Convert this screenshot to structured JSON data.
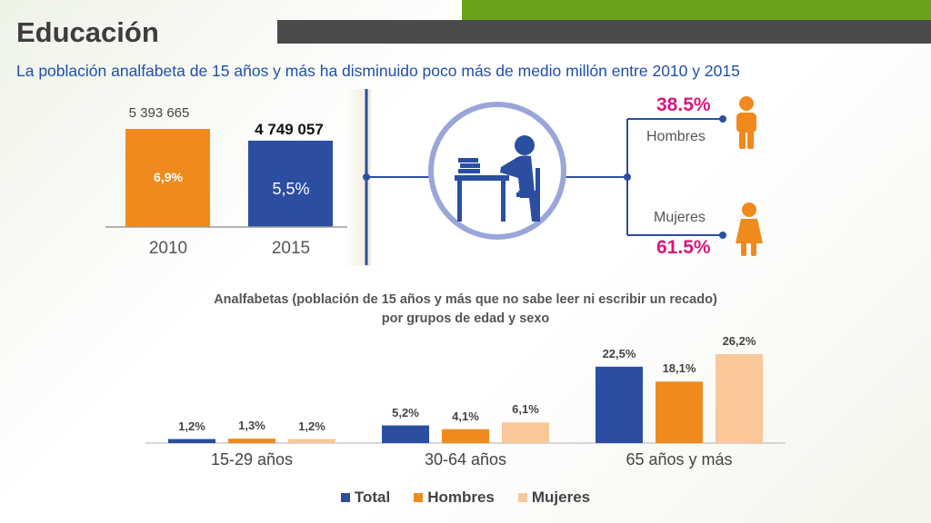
{
  "header": {
    "title": "Educación",
    "subtitle": "La población analfabeta de 15 años y más ha disminuido poco más de medio millón entre 2010 y 2015"
  },
  "colors": {
    "total": "#2b4ea0",
    "hombres": "#f08a1c",
    "mujeres": "#f9c79a",
    "accent": "#d8177e",
    "connector": "#2b4ea0"
  },
  "icons": [
    "student-desk-icon",
    "man-icon",
    "woman-icon"
  ],
  "chart_data": [
    {
      "type": "bar",
      "categories": [
        "2010",
        "2015"
      ],
      "values": [
        5393665,
        4749057
      ],
      "value_labels": [
        "5 393 665",
        "4 749 057"
      ],
      "rate_labels": [
        "6,9%",
        "5,5%"
      ]
    },
    {
      "type": "pie",
      "categories": [
        "Hombres",
        "Mujeres"
      ],
      "values": [
        38.5,
        61.5
      ],
      "value_labels": [
        "38.5%",
        "61.5%"
      ]
    },
    {
      "type": "bar",
      "title_line1": "Analfabetas (población de 15 años y más que no sabe leer ni escribir un recado)",
      "title_line2": "por grupos de edad y sexo",
      "categories": [
        "15-29 años",
        "30-64 años",
        "65 años y más"
      ],
      "series": [
        {
          "name": "Total",
          "values": [
            1.2,
            5.2,
            22.5
          ],
          "labels": [
            "1,2%",
            "5,2%",
            "22,5%"
          ]
        },
        {
          "name": "Hombres",
          "values": [
            1.3,
            4.1,
            18.1
          ],
          "labels": [
            "1,3%",
            "4,1%",
            "18,1%"
          ]
        },
        {
          "name": "Mujeres",
          "values": [
            1.2,
            6.1,
            26.2
          ],
          "labels": [
            "1,2%",
            "6,1%",
            "26,2%"
          ]
        }
      ],
      "legend_position": "bottom"
    }
  ]
}
